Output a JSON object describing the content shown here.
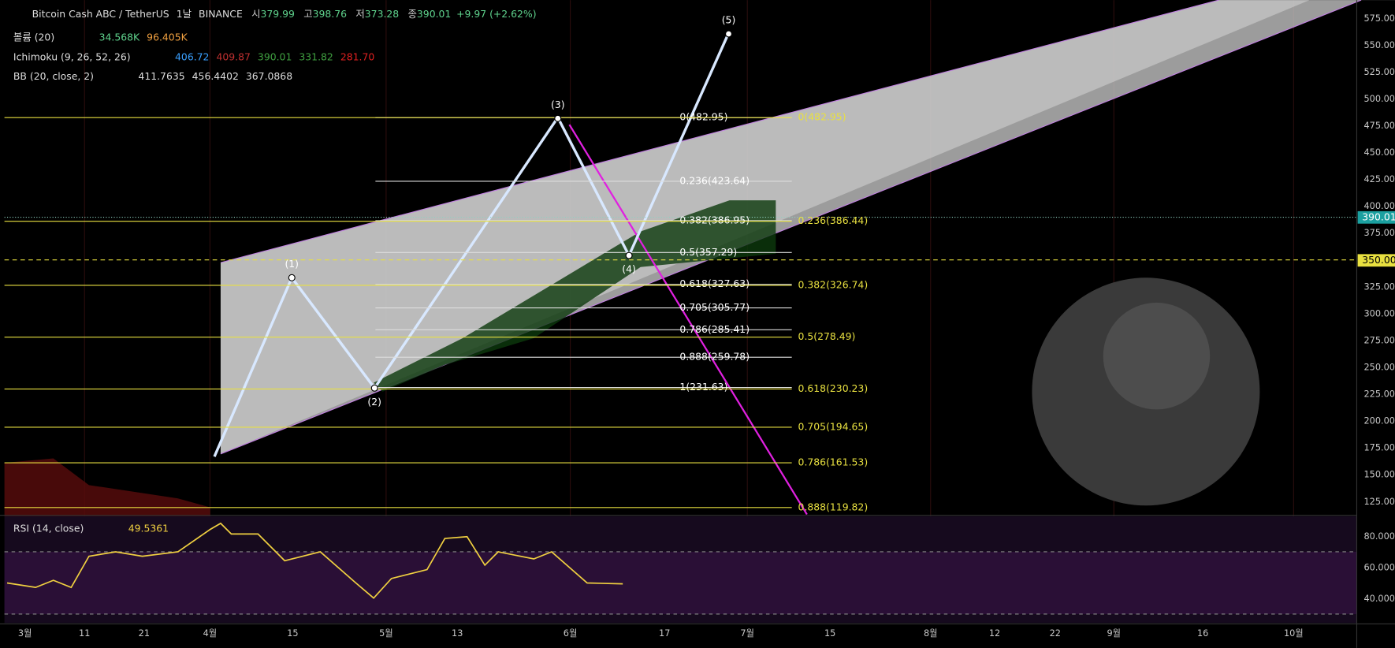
{
  "header": {
    "symbol": "Bitcoin Cash ABC / TetherUS",
    "interval": "1날",
    "exchange": "BINANCE",
    "ohlc": [
      {
        "label": "시",
        "value": "379.99"
      },
      {
        "label": "고",
        "value": "398.76"
      },
      {
        "label": "저",
        "value": "373.28"
      },
      {
        "label": "종",
        "value": "390.01"
      }
    ],
    "change": "+9.97 (+2.62%)"
  },
  "indicators": [
    {
      "name": "볼륨 (20)",
      "values": [
        "34.568K",
        "96.405K"
      ]
    },
    {
      "name": "Ichimoku (9, 26, 52, 26)",
      "values": [
        "406.72",
        "409.87",
        "390.01",
        "331.82",
        "281.70"
      ]
    },
    {
      "name": "BB (20, close, 2)",
      "values": [
        "411.7635",
        "456.4402",
        "367.0868"
      ]
    }
  ],
  "price_axis": {
    "ticks": [
      "575.00",
      "550.00",
      "525.00",
      "500.00",
      "475.00",
      "450.00",
      "425.00",
      "400.00",
      "375.00",
      "325.00",
      "300.00",
      "275.00",
      "250.00",
      "225.00",
      "200.00",
      "175.00",
      "150.00",
      "125.00"
    ],
    "last_price": "390.01",
    "level": "350.00"
  },
  "time_axis": [
    "3월",
    "11",
    "21",
    "4월",
    "15",
    "5월",
    "13",
    "6월",
    "17",
    "7월",
    "15",
    "8월",
    "12",
    "22",
    "9월",
    "16",
    "10월"
  ],
  "fib_left": [
    "0(482.95)",
    "0.236(423.64)",
    "0.382(386.95)",
    "0.5(357.29)",
    "0.618(327.63)",
    "0.705(305.77)",
    "0.786(285.41)",
    "0.888(259.78)",
    "1(231.63)"
  ],
  "fib_right": [
    "0(482.95)",
    "0.236(386.44)",
    "0.382(326.74)",
    "0.5(278.49)",
    "0.618(230.23)",
    "0.705(194.65)",
    "0.786(161.53)",
    "0.888(119.82)"
  ],
  "waves": [
    "(1)",
    "(2)",
    "(3)",
    "(4)",
    "(5)"
  ],
  "rsi": {
    "name": "RSI (14, close)",
    "value": "49.5361",
    "ticks": [
      "80.0000",
      "60.0000",
      "40.0000"
    ]
  }
}
